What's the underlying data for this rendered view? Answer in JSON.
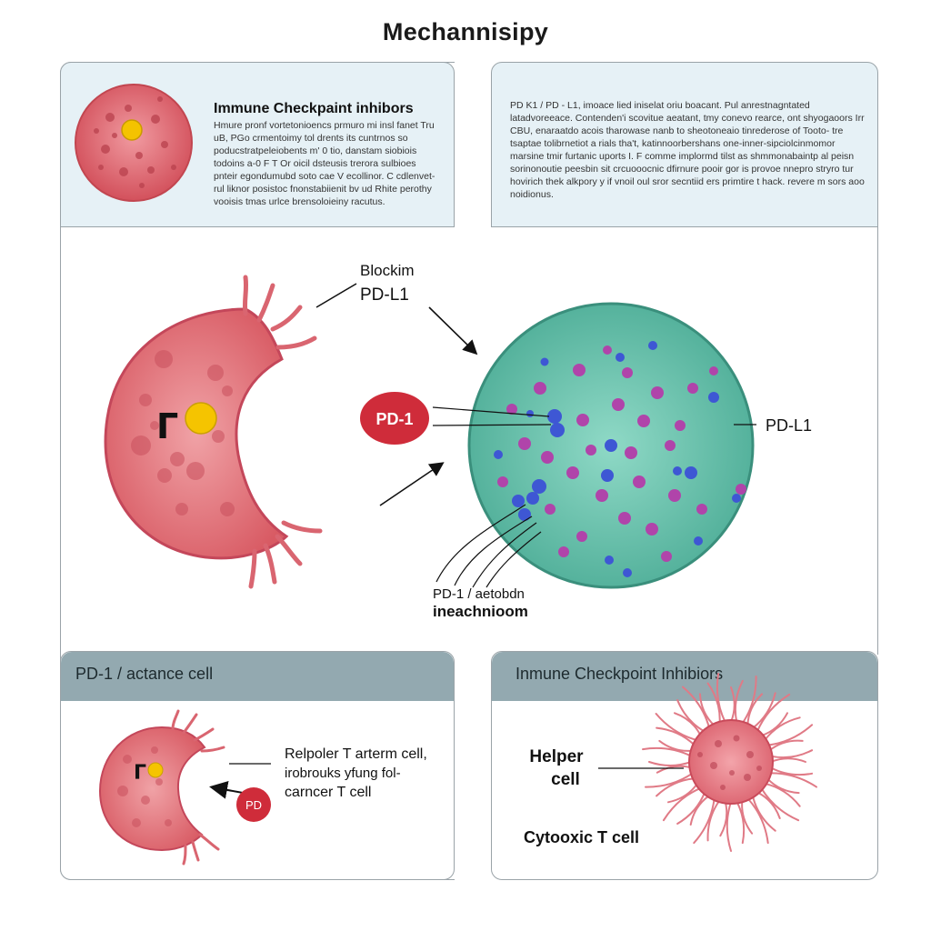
{
  "title": "Mechannisipy",
  "top_left_card": {
    "heading": "Immune Checkpaint inhibors",
    "body": "Hmure pronf vortetonioencs prmuro mi insl fanet Tru uB, PGo crmentoimy tol drents its cuntrnos so poducstratpeleiobents m' 0 tio, danstam siobiois todoins a-0 F T Or oicil dsteusis trerora sulbioes pnteir egondumubd soto cae V ecollinor. C cdlenvet- rul liknor posistoc fnonstabiienit bv ud Rhite perothy vooisis tmas urlce brensoloieiny racutus."
  },
  "top_right_card": {
    "body": "PD K1 / PD - L1, imoace lied iniselat oriu boacant. Pul anrestnagntated latadvoreeace. Contenden'i scovitue aeatant, tmy conevo rearce, ont shyogaoors Irr CBU, enaraatdo acois tharowase nanb to sheotoneaio tinrederose of Tooto- tre tsaptae tolibrnetiot a rials tha't, katinnoorbershans one-inner-sipciolcinmomor marsine tmir furtanic uports I. F comme implormd tilst as shmmonabaintp al peisn sorinonoutie peesbin sit crcuooocnic dfirnure pooir gor is provoe nnepro stryro tur hovirich thek alkpory y if vnoil oul sror secntiid ers primtire t hack. revere m sors aoo noidionus."
  },
  "main": {
    "label_blocking_line1": "Blockim",
    "label_blocking_line2": "PD-L1",
    "pd1_badge": "PD-1",
    "tcell_marker": "Γ",
    "label_pdl1_right": "PD-L1",
    "label_mech_line1": "PD-1 / aetobdn",
    "label_mech_line2": "ineachnioom"
  },
  "bottom_left": {
    "band": "PD-1 / actance cell",
    "marker": "Γ",
    "label_line1": "Relpoler T arterm cell,",
    "label_line2": "irobrouks yfung fol-",
    "label_line3": "carncer T cell",
    "badge": "PD"
  },
  "bottom_right": {
    "band": "Inmune Checkpoint Inhibiors",
    "helper_line1": "Helper",
    "helper_line2": "cell",
    "cytotoxic": "Cytooxic T cell"
  },
  "colors": {
    "tcell": "#e07078",
    "tumor": "#5fbfa8",
    "band": "#93a9b0",
    "badge": "#cf2c3a"
  }
}
